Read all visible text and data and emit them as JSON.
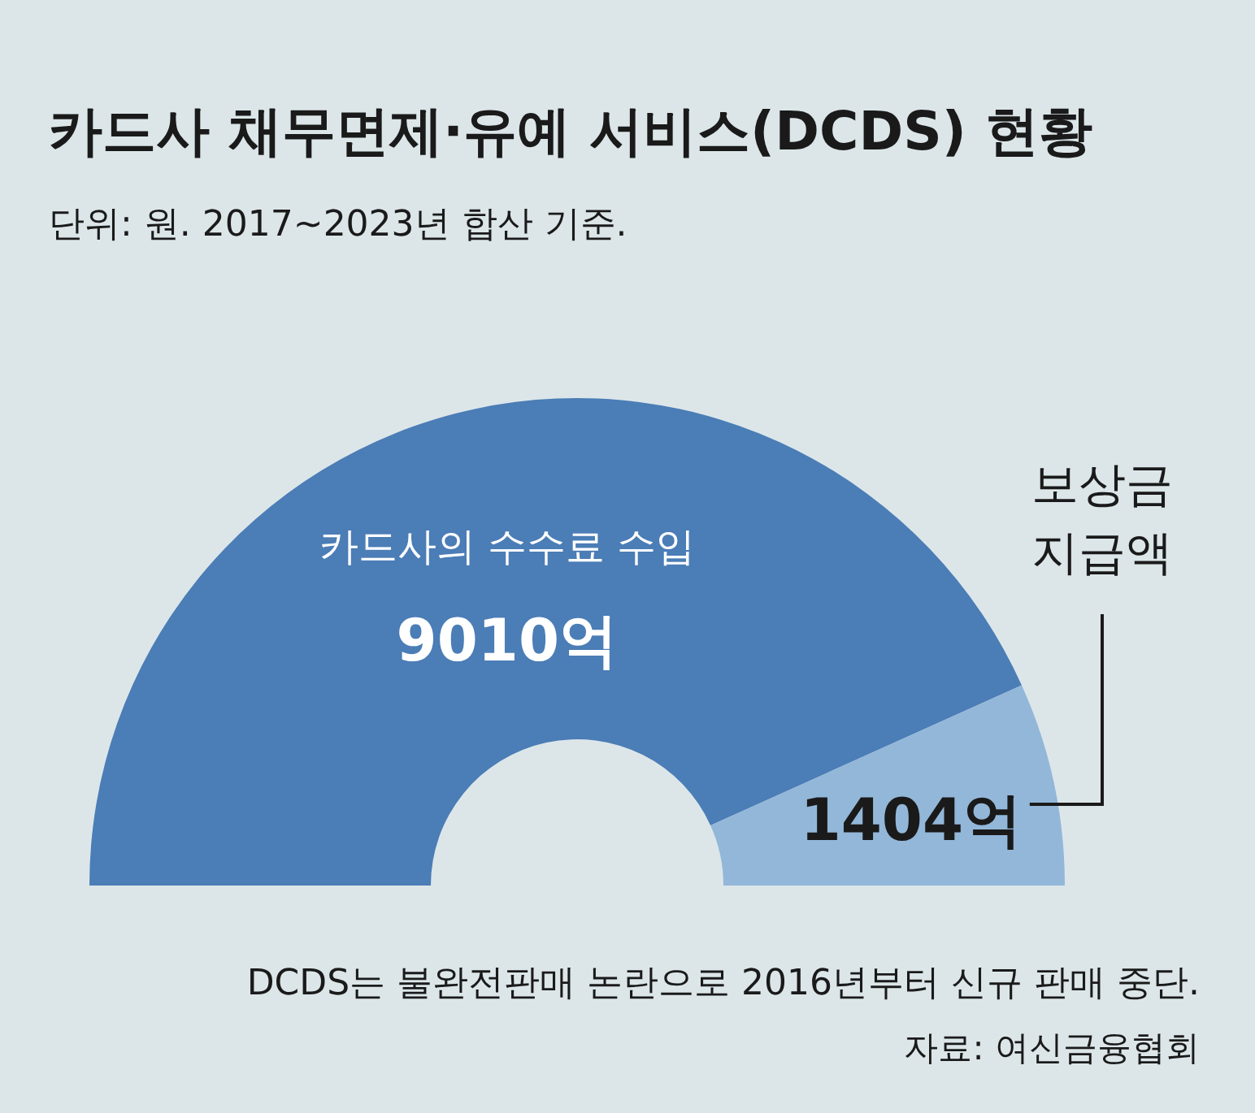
{
  "chart_data": {
    "type": "donut",
    "title": "카드사 채무면제·유예 서비스(DCDS) 현황",
    "subtitle": "단위: 원.  2017~2023년 합산 기준.",
    "categories": [
      "카드사의 수수료 수입",
      "보상금 지급액"
    ],
    "values": [
      9010,
      1404
    ],
    "colors": [
      "#4b7db6",
      "#93b7d9"
    ],
    "value_labels": [
      "9010억",
      "1404억"
    ],
    "annotations": [
      "DCDS는 불완전판매 논란으로 2016년부터 신규 판매 중단.",
      "자료: 여신금융협회"
    ]
  }
}
